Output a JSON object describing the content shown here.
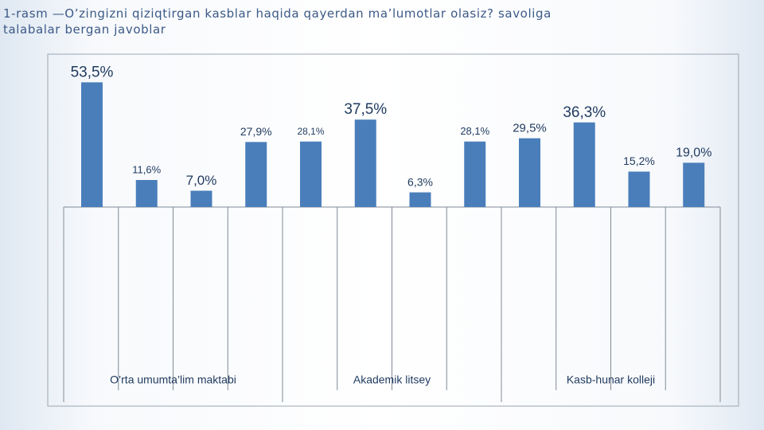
{
  "chart_data": {
    "type": "bar",
    "title": "1-rasm —O’zingizni qiziqtirgan kasblar haqida qayerdan ma’lumotlar olasiz? savoliga talabalar bergan javoblar",
    "categories": [
      null,
      null,
      null,
      null,
      null,
      null,
      null,
      null,
      null,
      null,
      null,
      null
    ],
    "values": [
      53.5,
      11.6,
      7.0,
      27.9,
      28.1,
      37.5,
      6.3,
      28.1,
      29.5,
      36.3,
      15.2,
      19.0
    ],
    "value_labels": [
      "53,5%",
      "11,6%",
      "7,0%",
      "27,9%",
      "28,1%",
      "37,5%",
      "6,3%",
      "28,1%",
      "29,5%",
      "36,3%",
      "15,2%",
      "19,0%"
    ],
    "groups": [
      "O’rta umumta’lim maktabi",
      "Akademik litsey",
      "Kasb-hunar kolleji"
    ],
    "color": "#4a7ebb",
    "ylim": [
      0,
      55
    ]
  }
}
